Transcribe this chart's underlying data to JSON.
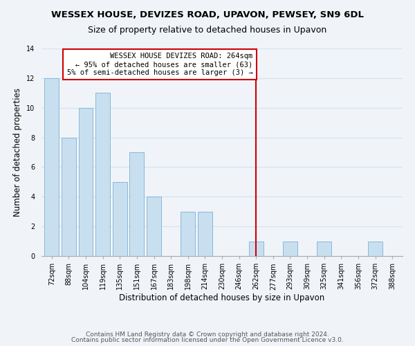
{
  "title": "WESSEX HOUSE, DEVIZES ROAD, UPAVON, PEWSEY, SN9 6DL",
  "subtitle": "Size of property relative to detached houses in Upavon",
  "xlabel": "Distribution of detached houses by size in Upavon",
  "ylabel": "Number of detached properties",
  "bar_labels": [
    "72sqm",
    "88sqm",
    "104sqm",
    "119sqm",
    "135sqm",
    "151sqm",
    "167sqm",
    "183sqm",
    "198sqm",
    "214sqm",
    "230sqm",
    "246sqm",
    "262sqm",
    "277sqm",
    "293sqm",
    "309sqm",
    "325sqm",
    "341sqm",
    "356sqm",
    "372sqm",
    "388sqm"
  ],
  "bar_values": [
    12,
    8,
    10,
    11,
    5,
    7,
    4,
    0,
    3,
    3,
    0,
    0,
    1,
    0,
    1,
    0,
    1,
    0,
    0,
    1,
    0
  ],
  "bar_color": "#c8dff0",
  "bar_edge_color": "#89b8d8",
  "highlight_index": 12,
  "vline_color": "#cc0000",
  "annotation_text": "WESSEX HOUSE DEVIZES ROAD: 264sqm\n← 95% of detached houses are smaller (63)\n5% of semi-detached houses are larger (3) →",
  "annotation_box_edge": "#cc0000",
  "ylim": [
    0,
    14
  ],
  "yticks": [
    0,
    2,
    4,
    6,
    8,
    10,
    12,
    14
  ],
  "footer1": "Contains HM Land Registry data © Crown copyright and database right 2024.",
  "footer2": "Contains public sector information licensed under the Open Government Licence v3.0.",
  "background_color": "#f0f4f8",
  "grid_color": "#d8e4f0",
  "title_fontsize": 9.5,
  "subtitle_fontsize": 9,
  "axis_label_fontsize": 8.5,
  "tick_fontsize": 7,
  "annotation_fontsize": 7.5,
  "footer_fontsize": 6.5
}
